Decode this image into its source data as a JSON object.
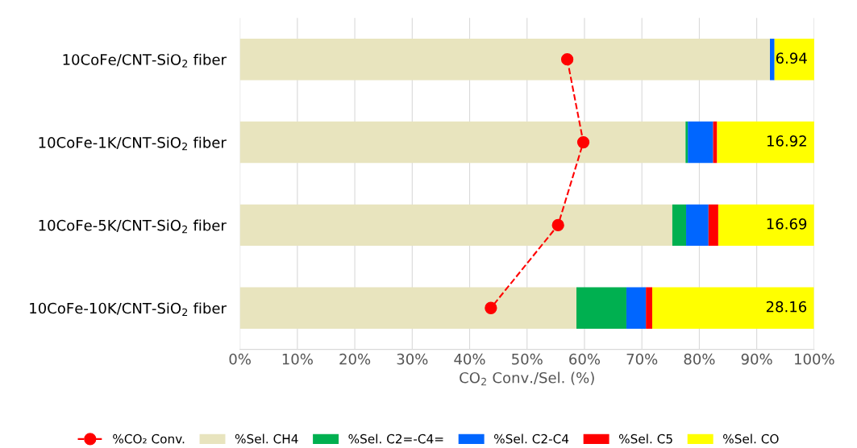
{
  "chart_data": {
    "type": "bar",
    "orientation": "horizontal",
    "stacked": true,
    "xlabel": "CO$_{2}$ Conv./Sel. (%)",
    "categories": [
      "10CoFe/CNT-SiO$_{2}$ fiber",
      "10CoFe-1K/CNT-SiO$_{2}$ fiber",
      "10CoFe-5K/CNT-SiO$_{2}$ fiber",
      "10CoFe-10K/CNT-SiO$_{2}$ fiber"
    ],
    "series": [
      {
        "name": "%CO₂ Conv.",
        "type": "line",
        "color": "#ff0000",
        "marker": "circle",
        "line_style": "dashed",
        "values": [
          57.0,
          59.8,
          55.4,
          43.7
        ]
      },
      {
        "name": "%Sel. CH4",
        "color": "#e8e4be",
        "values": [
          92.3,
          77.6,
          75.3,
          58.6
        ]
      },
      {
        "name": "%Sel. C2=-C4=",
        "color": "#00b050",
        "values": [
          0,
          0.4,
          2.4,
          8.7
        ]
      },
      {
        "name": "%Sel. C2-C4",
        "color": "#0066ff",
        "values": [
          0.8,
          4.4,
          3.9,
          3.4
        ]
      },
      {
        "name": "%Sel. C5",
        "color": "#ff0000",
        "values": [
          0,
          0.7,
          1.7,
          1.1
        ]
      },
      {
        "name": "%Sel. CO",
        "color": "#ffff00",
        "values": [
          6.94,
          16.92,
          16.69,
          28.16
        ],
        "value_labels": [
          "6.94",
          "16.92",
          "16.69",
          "28.16"
        ]
      }
    ],
    "xlim": [
      0,
      100
    ],
    "xticks": [
      {
        "value": 0,
        "label": "0%"
      },
      {
        "value": 10,
        "label": "10%"
      },
      {
        "value": 20,
        "label": "20%"
      },
      {
        "value": 30,
        "label": "30%"
      },
      {
        "value": 40,
        "label": "40%"
      },
      {
        "value": 50,
        "label": "50%"
      },
      {
        "value": 60,
        "label": "60%"
      },
      {
        "value": 70,
        "label": "70%"
      },
      {
        "value": 80,
        "label": "80%"
      },
      {
        "value": 90,
        "label": "90%"
      },
      {
        "value": 100,
        "label": "100%"
      }
    ],
    "grid": "x",
    "legend": "bottom"
  }
}
